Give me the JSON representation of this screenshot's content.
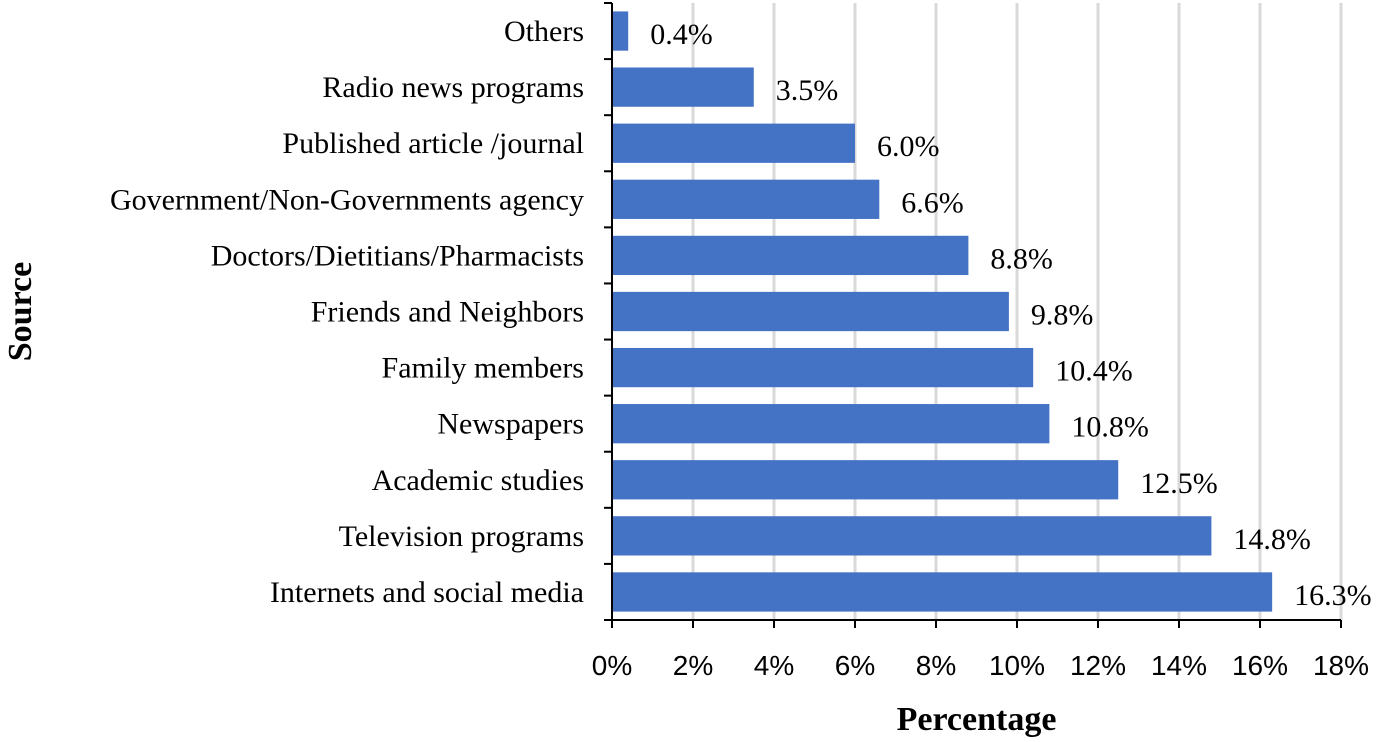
{
  "chart_data": {
    "type": "bar",
    "orientation": "horizontal",
    "categories": [
      "Others",
      "Radio news programs",
      "Published article /journal",
      "Government/Non-Governments agency",
      "Doctors/Dietitians/Pharmacists",
      "Friends and Neighbors",
      "Family members",
      "Newspapers",
      "Academic studies",
      "Television programs",
      "Internets and social media"
    ],
    "values": [
      0.4,
      3.5,
      6.0,
      6.6,
      8.8,
      9.8,
      10.4,
      10.8,
      12.5,
      14.8,
      16.3
    ],
    "value_labels": [
      "0.4%",
      "3.5%",
      "6.0%",
      "6.6%",
      "8.8%",
      "9.8%",
      "10.4%",
      "10.8%",
      "12.5%",
      "14.8%",
      "16.3%"
    ],
    "xlabel": "Percentage",
    "ylabel": "Source",
    "xlim": [
      0,
      18
    ],
    "xticks": [
      0,
      2,
      4,
      6,
      8,
      10,
      12,
      14,
      16,
      18
    ],
    "xtick_labels": [
      "0%",
      "2%",
      "4%",
      "6%",
      "8%",
      "10%",
      "12%",
      "14%",
      "16%",
      "18%"
    ],
    "grid": "vertical",
    "legend": "none",
    "bar_color": "#4472C4"
  }
}
